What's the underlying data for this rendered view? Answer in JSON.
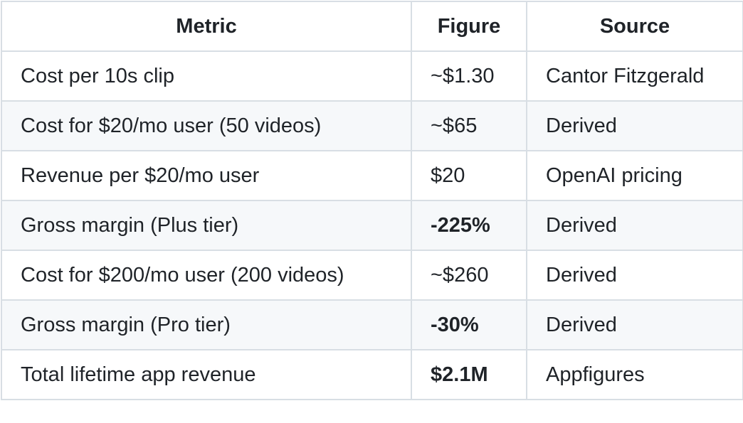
{
  "table": {
    "headers": [
      "Metric",
      "Figure",
      "Source"
    ],
    "rows": [
      {
        "metric": "Cost per 10s clip",
        "figure": "~$1.30",
        "figure_bold": false,
        "source": "Cantor Fitzgerald"
      },
      {
        "metric": "Cost for $20/mo user (50 videos)",
        "figure": "~$65",
        "figure_bold": false,
        "source": "Derived"
      },
      {
        "metric": "Revenue per $20/mo user",
        "figure": "$20",
        "figure_bold": false,
        "source": "OpenAI pricing"
      },
      {
        "metric": "Gross margin (Plus tier)",
        "figure": "-225%",
        "figure_bold": true,
        "source": "Derived"
      },
      {
        "metric": "Cost for $200/mo user (200 videos)",
        "figure": "~$260",
        "figure_bold": false,
        "source": "Derived"
      },
      {
        "metric": "Gross margin (Pro tier)",
        "figure": "-30%",
        "figure_bold": true,
        "source": "Derived"
      },
      {
        "metric": "Total lifetime app revenue",
        "figure": "$2.1M",
        "figure_bold": true,
        "source": "Appfigures"
      }
    ]
  },
  "colors": {
    "border": "#d8dee4",
    "stripe": "#f6f8fa",
    "text": "#1f2328"
  }
}
